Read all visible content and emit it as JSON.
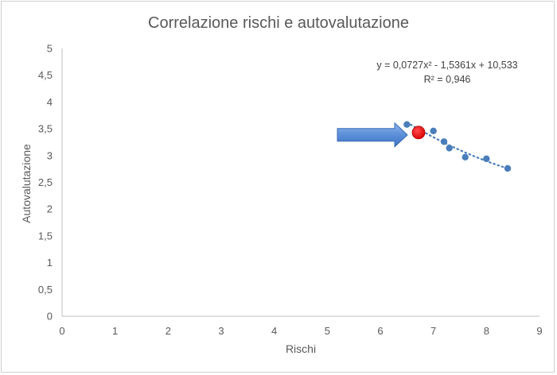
{
  "chart_data": {
    "type": "scatter",
    "title": "Correlazione rischi e autovalutazione",
    "xlabel": "Rischi",
    "ylabel": "Autovalutazione",
    "xlim": [
      0,
      9
    ],
    "ylim": [
      0,
      5
    ],
    "x_ticks": [
      "0",
      "1",
      "2",
      "3",
      "4",
      "5",
      "6",
      "7",
      "8",
      "9"
    ],
    "y_ticks": [
      "0",
      "0,5",
      "1",
      "1,5",
      "2",
      "2,5",
      "3",
      "3,5",
      "4",
      "4,5",
      "5"
    ],
    "grid": false,
    "series": [
      {
        "x": [
          6.5,
          7.0,
          7.2,
          7.3,
          7.6,
          8.0,
          8.4
        ],
        "y": [
          3.58,
          3.46,
          3.26,
          3.14,
          2.97,
          2.94,
          2.76
        ],
        "color": "#4a7ebb"
      }
    ],
    "trendline": {
      "type": "polynomial",
      "coefficients": [
        0.0727,
        -1.5361,
        10.533
      ],
      "x_range": [
        6.5,
        8.4
      ],
      "color": "#4a7ebb",
      "style": "dotted"
    },
    "equation_line1": "y = 0,0727x² - 1,5361x + 10,533",
    "equation_line2": "R² = 0,946",
    "highlight_point": {
      "x": 6.72,
      "y": 3.43,
      "color": "#e00000"
    },
    "arrow": {
      "color": "#5b8fd8",
      "points_to": "highlight_point"
    }
  }
}
